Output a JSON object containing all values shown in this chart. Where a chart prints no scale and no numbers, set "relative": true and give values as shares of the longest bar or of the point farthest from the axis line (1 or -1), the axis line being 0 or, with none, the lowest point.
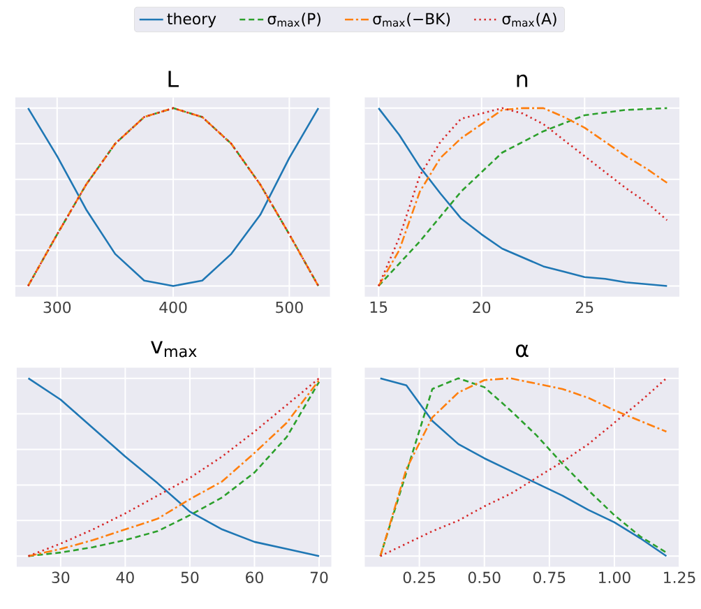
{
  "chart_data": [
    {
      "type": "line",
      "title": "L",
      "relative": true,
      "grid": true,
      "legend": "top",
      "tick_labels": "x",
      "xlim": [
        264,
        535
      ],
      "xticks": [
        300,
        400,
        500
      ],
      "x": [
        275,
        300,
        325,
        350,
        375,
        400,
        425,
        450,
        475,
        500,
        525
      ],
      "series": [
        {
          "name": "theory",
          "color": "#1f77b4",
          "line_style": "solid",
          "values": [
            1.0,
            0.73,
            0.43,
            0.18,
            0.03,
            0.0,
            0.03,
            0.18,
            0.4,
            0.72,
            1.0
          ]
        },
        {
          "name": "σ$_{max}$(P)",
          "color": "#2ca02c",
          "line_style": "dashed",
          "values": [
            0.0,
            0.29,
            0.57,
            0.8,
            0.95,
            1.0,
            0.95,
            0.8,
            0.57,
            0.29,
            0.0
          ]
        },
        {
          "name": "σ$_{max}$(−BK)",
          "color": "#ff7f0e",
          "line_style": "dashdot",
          "values": [
            0.0,
            0.29,
            0.57,
            0.8,
            0.95,
            1.0,
            0.95,
            0.8,
            0.57,
            0.29,
            0.0
          ]
        },
        {
          "name": "σ$_{max}$(A)",
          "color": "#d62728",
          "line_style": "dotted",
          "values": [
            0.0,
            0.29,
            0.57,
            0.8,
            0.95,
            1.0,
            0.95,
            0.8,
            0.57,
            0.29,
            0.0
          ]
        }
      ]
    },
    {
      "type": "line",
      "title": "n",
      "relative": true,
      "grid": true,
      "tick_labels": "x",
      "xlim": [
        14.33,
        29.6
      ],
      "xticks": [
        15,
        20,
        25
      ],
      "x": [
        15,
        16,
        17,
        18,
        19,
        20,
        21,
        22,
        23,
        24,
        25,
        26,
        27,
        28,
        29
      ],
      "series": [
        {
          "color": "#1f77b4",
          "line_style": "solid",
          "values": [
            1.0,
            0.85,
            0.67,
            0.52,
            0.38,
            0.29,
            0.21,
            0.16,
            0.11,
            0.08,
            0.05,
            0.04,
            0.02,
            0.01,
            0.0
          ]
        },
        {
          "color": "#2ca02c",
          "line_style": "dashed",
          "x": [
            15,
            17,
            19,
            21,
            23,
            25,
            27,
            29
          ],
          "values": [
            0.0,
            0.25,
            0.53,
            0.75,
            0.87,
            0.96,
            0.99,
            1.0
          ]
        },
        {
          "color": "#ff7f0e",
          "line_style": "dashdot",
          "values": [
            0.0,
            0.2,
            0.53,
            0.72,
            0.83,
            0.91,
            0.99,
            1.0,
            1.0,
            0.95,
            0.89,
            0.81,
            0.73,
            0.66,
            0.58
          ]
        },
        {
          "color": "#d62728",
          "line_style": "dotted",
          "values": [
            0.0,
            0.27,
            0.62,
            0.81,
            0.94,
            0.97,
            1.0,
            0.97,
            0.91,
            0.82,
            0.73,
            0.64,
            0.55,
            0.47,
            0.37
          ]
        }
      ]
    },
    {
      "type": "line",
      "title": "v$_{max}$",
      "relative": true,
      "grid": true,
      "tick_labels": "x",
      "xlim": [
        23.2,
        71.9
      ],
      "xticks": [
        30,
        40,
        50,
        60,
        70
      ],
      "x": [
        25,
        30,
        35,
        40,
        45,
        50,
        55,
        60,
        65,
        70
      ],
      "series": [
        {
          "color": "#1f77b4",
          "line_style": "solid",
          "values": [
            1.0,
            0.88,
            0.72,
            0.56,
            0.41,
            0.25,
            0.15,
            0.08,
            0.04,
            0.0
          ]
        },
        {
          "color": "#2ca02c",
          "line_style": "dashed",
          "values": [
            0.0,
            0.02,
            0.05,
            0.09,
            0.14,
            0.23,
            0.33,
            0.47,
            0.67,
            0.98
          ]
        },
        {
          "color": "#ff7f0e",
          "line_style": "dashdot",
          "values": [
            0.0,
            0.04,
            0.09,
            0.15,
            0.21,
            0.32,
            0.42,
            0.58,
            0.75,
            0.99
          ]
        },
        {
          "color": "#d62728",
          "line_style": "dotted",
          "values": [
            0.0,
            0.07,
            0.15,
            0.24,
            0.34,
            0.44,
            0.56,
            0.7,
            0.85,
            1.0
          ]
        }
      ]
    },
    {
      "type": "line",
      "title": "α",
      "relative": true,
      "grid": true,
      "tick_labels": "x",
      "xlim": [
        0.04,
        1.25
      ],
      "xticks": [
        {
          "value": 0.25,
          "label": "0.25"
        },
        {
          "value": 0.5,
          "label": "0.50"
        },
        {
          "value": 0.75,
          "label": "0.75"
        },
        {
          "value": 1.0,
          "label": "1.00"
        },
        {
          "value": 1.25,
          "label": "1.25"
        }
      ],
      "x": [
        0.1,
        0.2,
        0.3,
        0.4,
        0.5,
        0.6,
        0.7,
        0.8,
        0.9,
        1.0,
        1.1,
        1.2
      ],
      "series": [
        {
          "color": "#1f77b4",
          "line_style": "solid",
          "values": [
            1.0,
            0.96,
            0.76,
            0.63,
            0.55,
            0.48,
            0.41,
            0.34,
            0.26,
            0.19,
            0.1,
            0.0
          ]
        },
        {
          "color": "#2ca02c",
          "line_style": "dashed",
          "values": [
            0.0,
            0.47,
            0.94,
            1.0,
            0.95,
            0.82,
            0.68,
            0.52,
            0.37,
            0.23,
            0.11,
            0.02
          ]
        },
        {
          "color": "#ff7f0e",
          "line_style": "dashdot",
          "values": [
            0.0,
            0.49,
            0.78,
            0.92,
            0.99,
            1.0,
            0.97,
            0.94,
            0.89,
            0.82,
            0.76,
            0.7
          ]
        },
        {
          "color": "#d62728",
          "line_style": "dotted",
          "values": [
            0.0,
            0.07,
            0.14,
            0.2,
            0.28,
            0.35,
            0.44,
            0.53,
            0.63,
            0.75,
            0.87,
            1.0
          ]
        }
      ]
    }
  ]
}
